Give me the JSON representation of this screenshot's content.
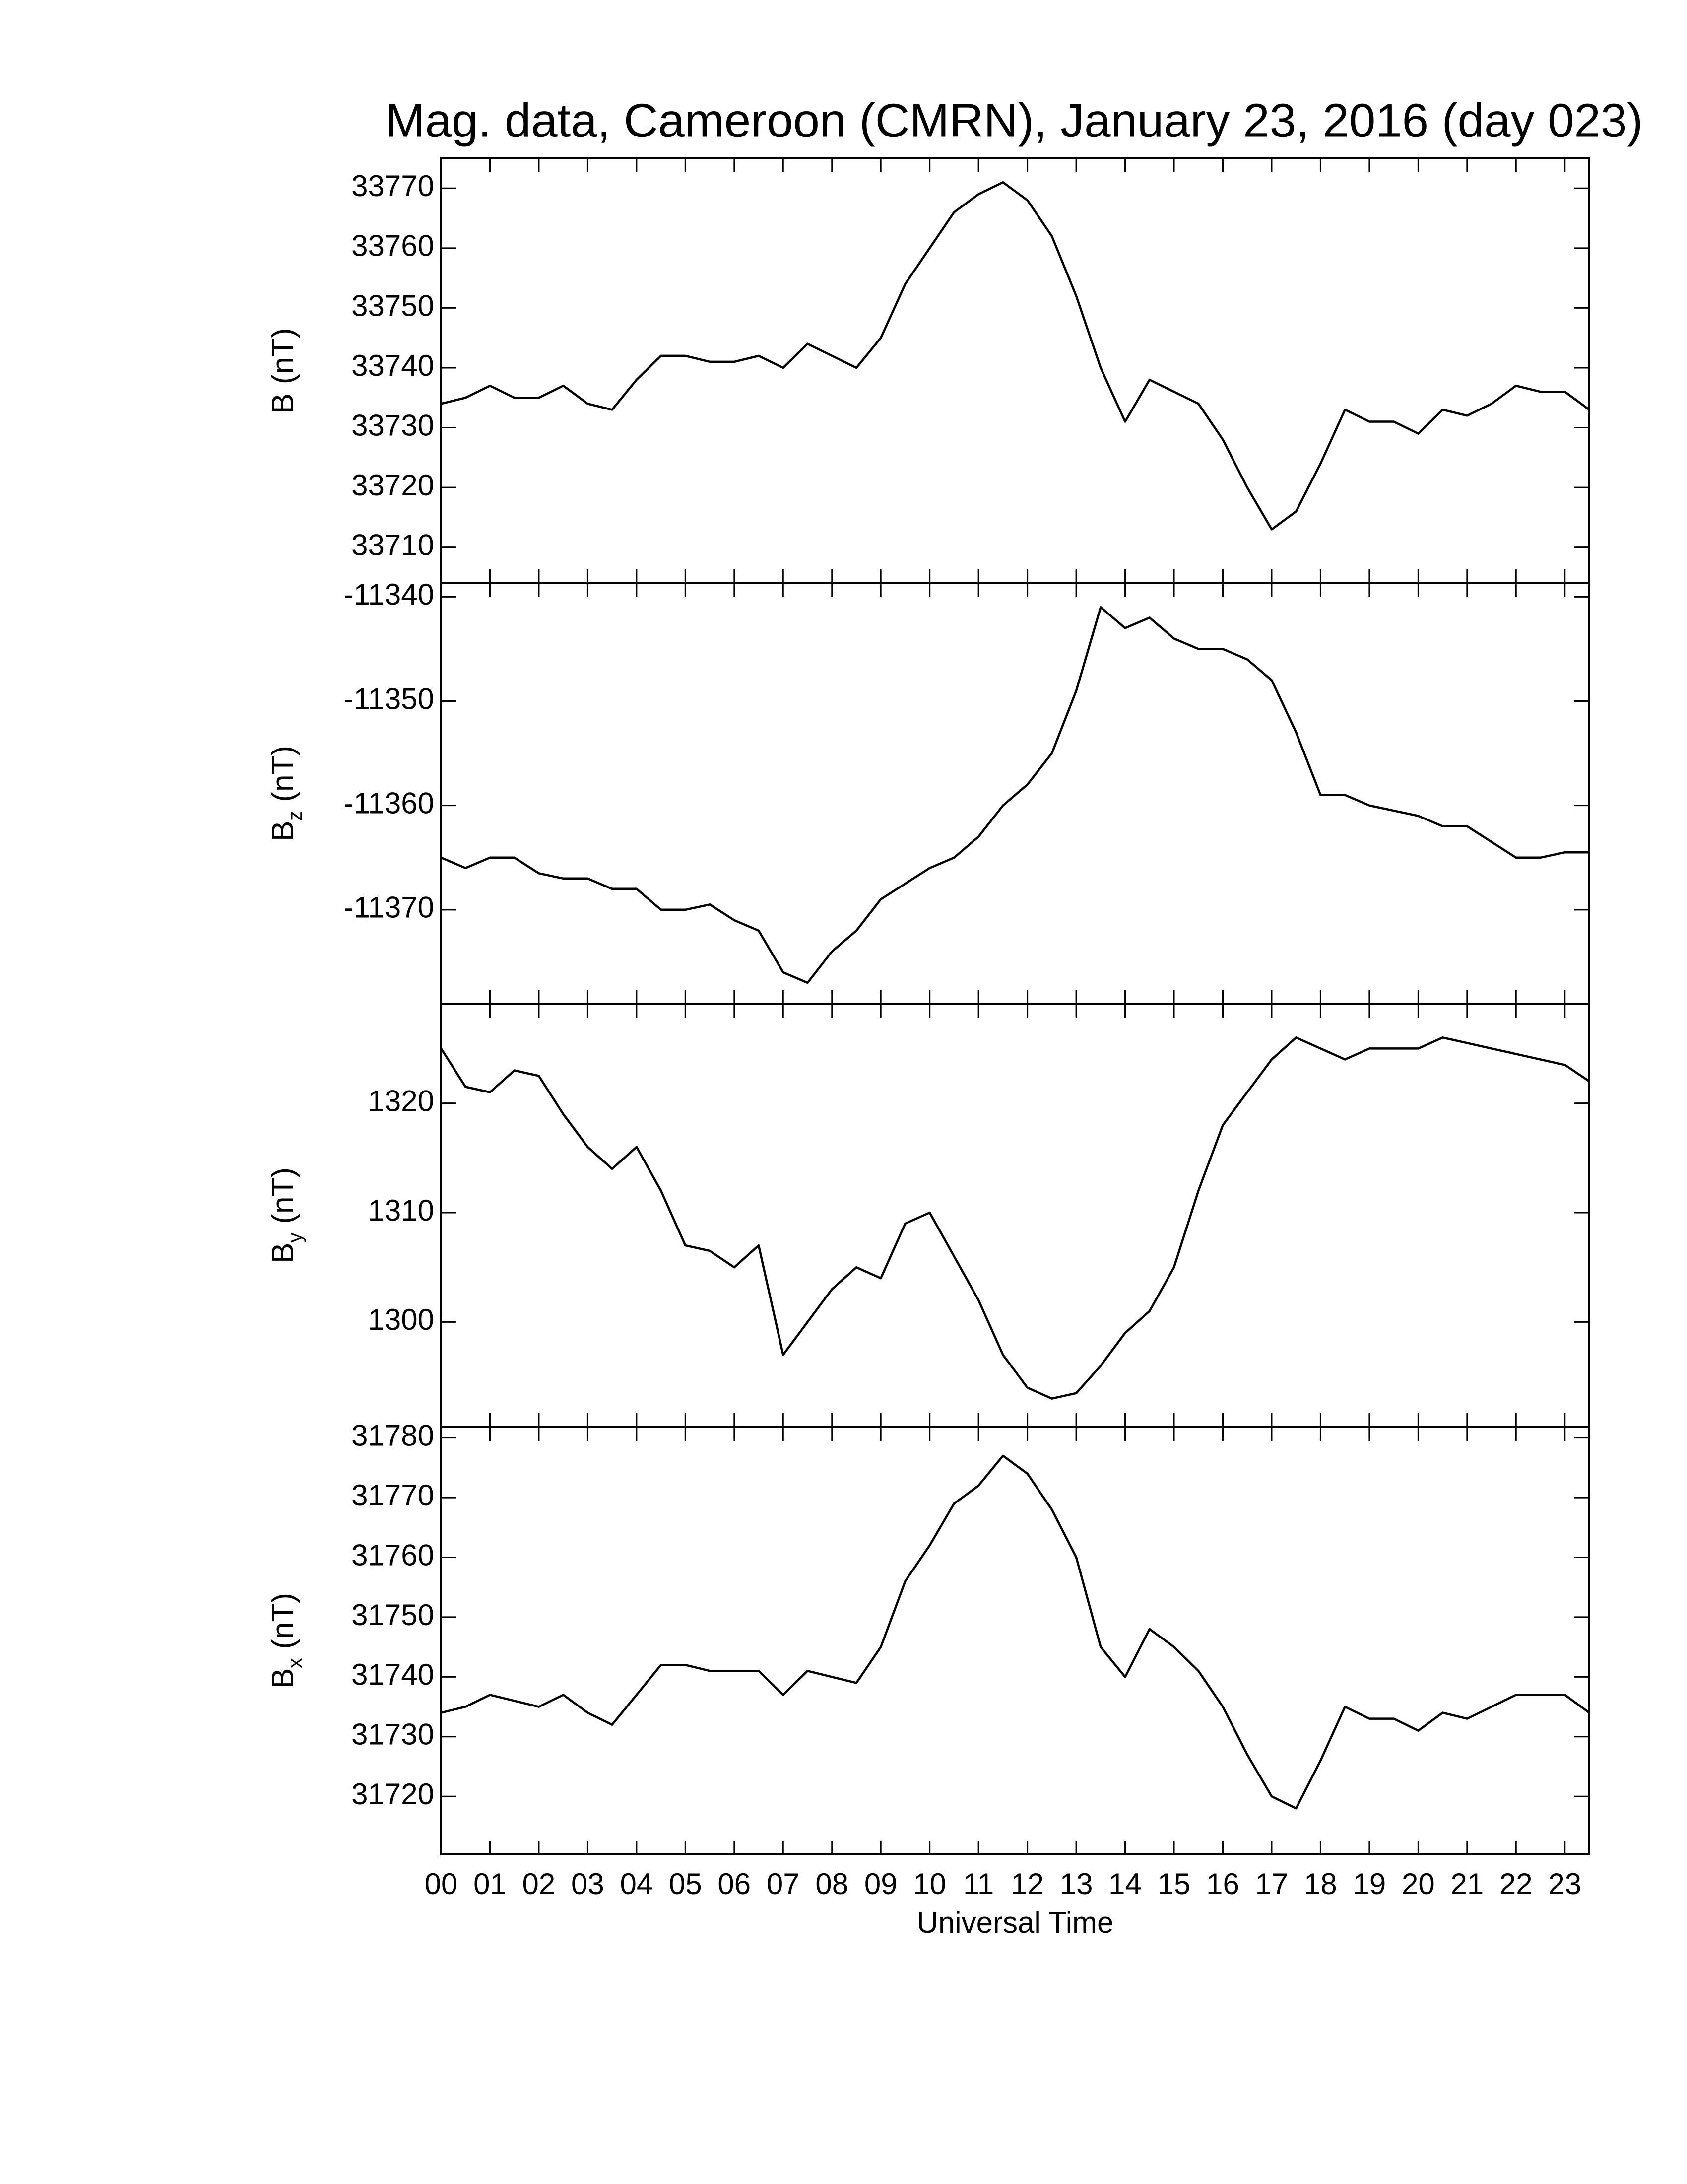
{
  "chart_data": [
    {
      "type": "line",
      "title": "Mag. data, Cameroon (CMRN), January 23, 2016 (day 023)",
      "ylabel": {
        "symbol": "B",
        "unit": "(nT)"
      },
      "x": [
        0,
        0.5,
        1,
        1.5,
        2,
        2.5,
        3,
        3.5,
        4,
        4.5,
        5,
        5.5,
        6,
        6.5,
        7,
        7.5,
        8,
        8.5,
        9,
        9.5,
        10,
        10.5,
        11,
        11.5,
        12,
        12.5,
        13,
        13.5,
        14,
        14.5,
        15,
        15.5,
        16,
        16.5,
        17,
        17.5,
        18,
        18.5,
        19,
        19.5,
        20,
        20.5,
        21,
        21.5,
        22,
        22.5,
        23,
        23.5
      ],
      "series": [
        {
          "color": "#000000",
          "values": [
            33734,
            33735,
            33737,
            33735,
            33735,
            33737,
            33734,
            33733,
            33738,
            33742,
            33742,
            33741,
            33741,
            33742,
            33740,
            33744,
            33742,
            33740,
            33745,
            33754,
            33760,
            33766,
            33769,
            33771,
            33768,
            33762,
            33752,
            33740,
            33731,
            33738,
            33736,
            33734,
            33728,
            33720,
            33713,
            33716,
            33724,
            33733,
            33731,
            33731,
            33729,
            33733,
            33732,
            33734,
            33737,
            33736,
            33736,
            33733
          ]
        }
      ],
      "xlim": [
        0,
        23.5
      ],
      "ylim": [
        33704,
        33775
      ],
      "yticks": [
        33710,
        33720,
        33730,
        33740,
        33750,
        33760,
        33770
      ]
    },
    {
      "type": "line",
      "ylabel": {
        "symbol": "B",
        "subscript": "z",
        "unit": "(nT)"
      },
      "x": [
        0,
        0.5,
        1,
        1.5,
        2,
        2.5,
        3,
        3.5,
        4,
        4.5,
        5,
        5.5,
        6,
        6.5,
        7,
        7.5,
        8,
        8.5,
        9,
        9.5,
        10,
        10.5,
        11,
        11.5,
        12,
        12.5,
        13,
        13.5,
        14,
        14.5,
        15,
        15.5,
        16,
        16.5,
        17,
        17.5,
        18,
        18.5,
        19,
        19.5,
        20,
        20.5,
        21,
        21.5,
        22,
        22.5,
        23,
        23.5
      ],
      "series": [
        {
          "color": "#000000",
          "values": [
            -11365,
            -11366,
            -11365,
            -11365,
            -11366.5,
            -11367,
            -11367,
            -11368,
            -11368,
            -11370,
            -11370,
            -11369.5,
            -11371,
            -11372,
            -11376,
            -11377,
            -11374,
            -11372,
            -11369,
            -11367.5,
            -11366,
            -11365,
            -11363,
            -11360,
            -11358,
            -11355,
            -11349,
            -11341,
            -11343,
            -11342,
            -11344,
            -11345,
            -11345,
            -11346,
            -11348,
            -11353,
            -11359,
            -11359,
            -11360,
            -11360.5,
            -11361,
            -11362,
            -11362,
            -11363.5,
            -11365,
            -11365,
            -11364.5,
            -11364.5
          ]
        }
      ],
      "xlim": [
        0,
        23.5
      ],
      "ylim": [
        -11379,
        -11338.7
      ],
      "yticks": [
        -11370,
        -11360,
        -11350,
        -11340
      ]
    },
    {
      "type": "line",
      "ylabel": {
        "symbol": "B",
        "subscript": "y",
        "unit": "(nT)"
      },
      "x": [
        0,
        0.5,
        1,
        1.5,
        2,
        2.5,
        3,
        3.5,
        4,
        4.5,
        5,
        5.5,
        6,
        6.5,
        7,
        7.5,
        8,
        8.5,
        9,
        9.5,
        10,
        10.5,
        11,
        11.5,
        12,
        12.5,
        13,
        13.5,
        14,
        14.5,
        15,
        15.5,
        16,
        16.5,
        17,
        17.5,
        18,
        18.5,
        19,
        19.5,
        20,
        20.5,
        21,
        21.5,
        22,
        22.5,
        23,
        23.5
      ],
      "series": [
        {
          "color": "#000000",
          "values": [
            1325,
            1321.5,
            1321,
            1323,
            1322.5,
            1319,
            1316,
            1314,
            1316,
            1312,
            1307,
            1306.5,
            1305,
            1307,
            1297,
            1300,
            1303,
            1305,
            1304,
            1309,
            1310,
            1306,
            1302,
            1297,
            1294,
            1293,
            1293.5,
            1296,
            1299,
            1301,
            1305,
            1312,
            1318,
            1321,
            1324,
            1326,
            1325,
            1324,
            1325,
            1325,
            1325,
            1326,
            1325.5,
            1325,
            1324.5,
            1324,
            1323.5,
            1322
          ]
        }
      ],
      "xlim": [
        0,
        23.5
      ],
      "ylim": [
        1290.4,
        1329.1
      ],
      "yticks": [
        1300,
        1310,
        1320
      ]
    },
    {
      "type": "line",
      "ylabel": {
        "symbol": "B",
        "subscript": "x",
        "unit": "(nT)"
      },
      "xlabel": "Universal Time",
      "x": [
        0,
        0.5,
        1,
        1.5,
        2,
        2.5,
        3,
        3.5,
        4,
        4.5,
        5,
        5.5,
        6,
        6.5,
        7,
        7.5,
        8,
        8.5,
        9,
        9.5,
        10,
        10.5,
        11,
        11.5,
        12,
        12.5,
        13,
        13.5,
        14,
        14.5,
        15,
        15.5,
        16,
        16.5,
        17,
        17.5,
        18,
        18.5,
        19,
        19.5,
        20,
        20.5,
        21,
        21.5,
        22,
        22.5,
        23,
        23.5
      ],
      "series": [
        {
          "color": "#000000",
          "values": [
            31734,
            31735,
            31737,
            31736,
            31735,
            31737,
            31734,
            31732,
            31737,
            31742,
            31742,
            31741,
            31741,
            31741,
            31737,
            31741,
            31740,
            31739,
            31745,
            31756,
            31762,
            31769,
            31772,
            31777,
            31774,
            31768,
            31760,
            31745,
            31740,
            31748,
            31745,
            31741,
            31735,
            31727,
            31720,
            31718,
            31726,
            31735,
            31733,
            31733,
            31731,
            31734,
            31733,
            31735,
            31737,
            31737,
            31737,
            31734
          ]
        }
      ],
      "xlim": [
        0,
        23.5
      ],
      "ylim": [
        31710.3,
        31781.8
      ],
      "yticks": [
        31720,
        31730,
        31740,
        31750,
        31760,
        31770,
        31780
      ],
      "xticks": [
        {
          "value": 0,
          "label": "00"
        },
        {
          "value": 1,
          "label": "01"
        },
        {
          "value": 2,
          "label": "02"
        },
        {
          "value": 3,
          "label": "03"
        },
        {
          "value": 4,
          "label": "04"
        },
        {
          "value": 5,
          "label": "05"
        },
        {
          "value": 6,
          "label": "06"
        },
        {
          "value": 7,
          "label": "07"
        },
        {
          "value": 8,
          "label": "08"
        },
        {
          "value": 9,
          "label": "09"
        },
        {
          "value": 10,
          "label": "10"
        },
        {
          "value": 11,
          "label": "11"
        },
        {
          "value": 12,
          "label": "12"
        },
        {
          "value": 13,
          "label": "13"
        },
        {
          "value": 14,
          "label": "14"
        },
        {
          "value": 15,
          "label": "15"
        },
        {
          "value": 16,
          "label": "16"
        },
        {
          "value": 17,
          "label": "17"
        },
        {
          "value": 18,
          "label": "18"
        },
        {
          "value": 19,
          "label": "19"
        },
        {
          "value": 20,
          "label": "20"
        },
        {
          "value": 21,
          "label": "21"
        },
        {
          "value": 22,
          "label": "22"
        },
        {
          "value": 23,
          "label": "23"
        }
      ]
    }
  ]
}
